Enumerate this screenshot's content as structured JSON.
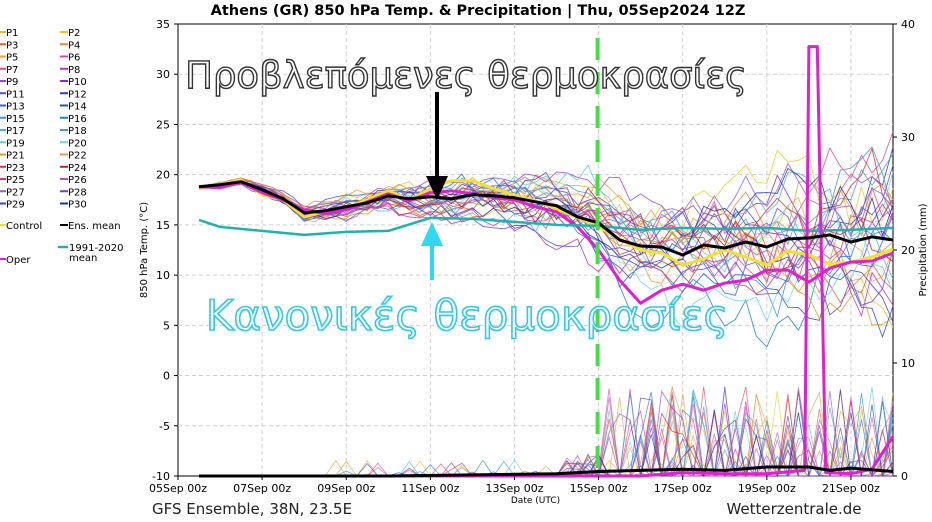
{
  "chart_data": {
    "type": "line",
    "title": "Athens  (GR)  850 hPa Temp. & Precipitation | Thu, 05Sep2024 12Z",
    "xlabel": "Date (UTC)",
    "ylabel": "850 hPa Temp. (°C)",
    "y2label": "Precipitation (mm)",
    "ylim": [
      -10,
      35
    ],
    "y2lim": [
      0,
      40
    ],
    "yticks": [
      "35",
      "30",
      "25",
      "20",
      "15",
      "10",
      "5",
      "0",
      "-5",
      "-10"
    ],
    "y2ticks": [
      "40",
      "30",
      "20",
      "10",
      "0"
    ],
    "xticks": [
      "05Sep 00z",
      "07Sep 00z",
      "09Sep 00z",
      "11Sep 00z",
      "13Sep 00z",
      "15Sep 00z",
      "17Sep 00z",
      "19Sep 00z",
      "21Sep 00z"
    ],
    "x_range_days": [
      0,
      17
    ],
    "grid": true,
    "footer_left": "GFS Ensemble, 38N, 23.5E",
    "footer_right": "Wetterzentrale.de",
    "legend_placement": "left",
    "legend": [
      {
        "label": "P1",
        "color": "#e8b830"
      },
      {
        "label": "P2",
        "color": "#f0c830"
      },
      {
        "label": "P3",
        "color": "#e06030"
      },
      {
        "label": "P4",
        "color": "#f08040"
      },
      {
        "label": "P5",
        "color": "#f0a030"
      },
      {
        "label": "P6",
        "color": "#d05090"
      },
      {
        "label": "P7",
        "color": "#e040a0"
      },
      {
        "label": "P8",
        "color": "#c030c0"
      },
      {
        "label": "P9",
        "color": "#a040d0"
      },
      {
        "label": "P10",
        "color": "#8030c0"
      },
      {
        "label": "P11",
        "color": "#5050d0"
      },
      {
        "label": "P12",
        "color": "#3040b0"
      },
      {
        "label": "P13",
        "color": "#3060e0"
      },
      {
        "label": "P14",
        "color": "#2050c0"
      },
      {
        "label": "P15",
        "color": "#4090e0"
      },
      {
        "label": "P16",
        "color": "#2080d0"
      },
      {
        "label": "P17",
        "color": "#50b0e0"
      },
      {
        "label": "P18",
        "color": "#40a0d0"
      },
      {
        "label": "P19",
        "color": "#60c8e0"
      },
      {
        "label": "P20",
        "color": "#70d8e0"
      },
      {
        "label": "P21",
        "color": "#d0a030"
      },
      {
        "label": "P22",
        "color": "#e0a040"
      },
      {
        "label": "P23",
        "color": "#e03030"
      },
      {
        "label": "P24",
        "color": "#c02020"
      },
      {
        "label": "P25",
        "color": "#d04060"
      },
      {
        "label": "P26",
        "color": "#c050a0"
      },
      {
        "label": "P27",
        "color": "#9060d0"
      },
      {
        "label": "P28",
        "color": "#7040c0"
      },
      {
        "label": "P29",
        "color": "#4040c0"
      },
      {
        "label": "P30",
        "color": "#2030a0"
      },
      {
        "label": "Control",
        "color": "#e8e030"
      },
      {
        "label": "Ens. mean",
        "color": "#000000"
      },
      {
        "label": "Oper",
        "color": "#e020d0"
      },
      {
        "label": "1991-2020 mean",
        "color": "#20b0b0"
      }
    ],
    "annotations": {
      "forecast_label": "Προβλεπόμενες θερμοκρασίες",
      "normal_label": "Κανονικές θερμοκρασίες",
      "vline_day": 10
    },
    "series": [
      {
        "name": "Ens. mean",
        "color": "#000000",
        "x": [
          0.5,
          1,
          1.5,
          2,
          2.5,
          3,
          3.5,
          4,
          4.5,
          5,
          5.5,
          6,
          6.5,
          7,
          7.5,
          8,
          8.5,
          9,
          9.5,
          10,
          10.5,
          11,
          11.5,
          12,
          12.5,
          13,
          13.5,
          14,
          14.5,
          15,
          15.5,
          16,
          16.5,
          17
        ],
        "y": [
          18.8,
          19,
          19.3,
          18.5,
          17.6,
          16.2,
          16.4,
          16.8,
          17.2,
          17.9,
          17.6,
          17.8,
          17.6,
          18,
          17.9,
          17.7,
          17.3,
          16.9,
          15.8,
          15.2,
          13.5,
          12.9,
          12.8,
          12,
          13,
          12.7,
          13.3,
          12.8,
          13.6,
          13.7,
          14,
          13.3,
          13.8,
          13.5
        ]
      },
      {
        "name": "Control",
        "color": "#f2e22a",
        "x": [
          0.5,
          1,
          1.5,
          2,
          2.5,
          3,
          3.5,
          4,
          4.5,
          5,
          5.5,
          6,
          6.5,
          7,
          7.5,
          8,
          8.5,
          9,
          9.5,
          10,
          10.5,
          11,
          11.5,
          12,
          12.5,
          13,
          13.5,
          14,
          14.5,
          15,
          15.5,
          16,
          16.5,
          17
        ],
        "y": [
          18.6,
          19,
          19.5,
          18,
          17.5,
          15.8,
          16.3,
          16.7,
          17.5,
          18.4,
          17.5,
          18.6,
          19.4,
          19.4,
          18.6,
          18,
          17.4,
          16.6,
          15.7,
          14.8,
          13.6,
          12.5,
          12.2,
          11,
          11.6,
          12.5,
          11.8,
          11,
          12.4,
          12,
          11.1,
          11.3,
          11.8,
          12.6
        ]
      },
      {
        "name": "Oper",
        "color": "#e020d0",
        "x": [
          0.5,
          1,
          1.5,
          2,
          2.5,
          3,
          3.5,
          4,
          4.5,
          5,
          5.5,
          6,
          6.5,
          7,
          7.5,
          8,
          8.5,
          9,
          9.5,
          10,
          10.5,
          11,
          11.5,
          12,
          12.5,
          13,
          13.5,
          14,
          14.5,
          15,
          15.5,
          16,
          16.5,
          17
        ],
        "y": [
          18.8,
          18.7,
          19.2,
          18.2,
          17.5,
          16.5,
          16.1,
          16.5,
          17.3,
          18.1,
          17.4,
          18.2,
          18.4,
          18.1,
          17.7,
          17.5,
          16.8,
          16.3,
          14.8,
          12.5,
          9.5,
          7.2,
          8.5,
          9.1,
          8.5,
          9.2,
          9.5,
          10.5,
          10.5,
          9.3,
          10.7,
          11.3,
          11.4,
          12.2
        ]
      },
      {
        "name": "1991-2020 mean",
        "color": "#20b0b0",
        "x": [
          0.5,
          1,
          2,
          3,
          4,
          5,
          6,
          7,
          8,
          9,
          10,
          11,
          12,
          13,
          14,
          15,
          16,
          17
        ],
        "y": [
          15.5,
          14.8,
          14.4,
          14,
          14.3,
          14.4,
          15.7,
          15.6,
          15.3,
          15,
          14.9,
          14.5,
          14.7,
          14.6,
          14.7,
          14.4,
          14.5,
          14.7
        ]
      },
      {
        "name": "Oper precipitation",
        "color": "#e020d0",
        "axis": "y2",
        "x": [
          0.5,
          5,
          10,
          11,
          12,
          13,
          14,
          14.9,
          15,
          15.2,
          15.4,
          16,
          16.5,
          17
        ],
        "y": [
          0,
          0,
          0,
          0,
          0.3,
          0.2,
          0.2,
          0.5,
          38,
          38,
          0.3,
          0.2,
          0.6,
          3.5
        ]
      },
      {
        "name": "Ens. mean precipitation",
        "color": "#000000",
        "axis": "y2",
        "x": [
          0.5,
          5,
          9,
          10,
          11,
          12,
          13,
          14,
          15,
          15.5,
          16,
          17
        ],
        "y": [
          0,
          0,
          0.2,
          0.4,
          0.5,
          0.6,
          0.5,
          0.8,
          0.8,
          0.5,
          0.7,
          0.4
        ]
      }
    ]
  }
}
